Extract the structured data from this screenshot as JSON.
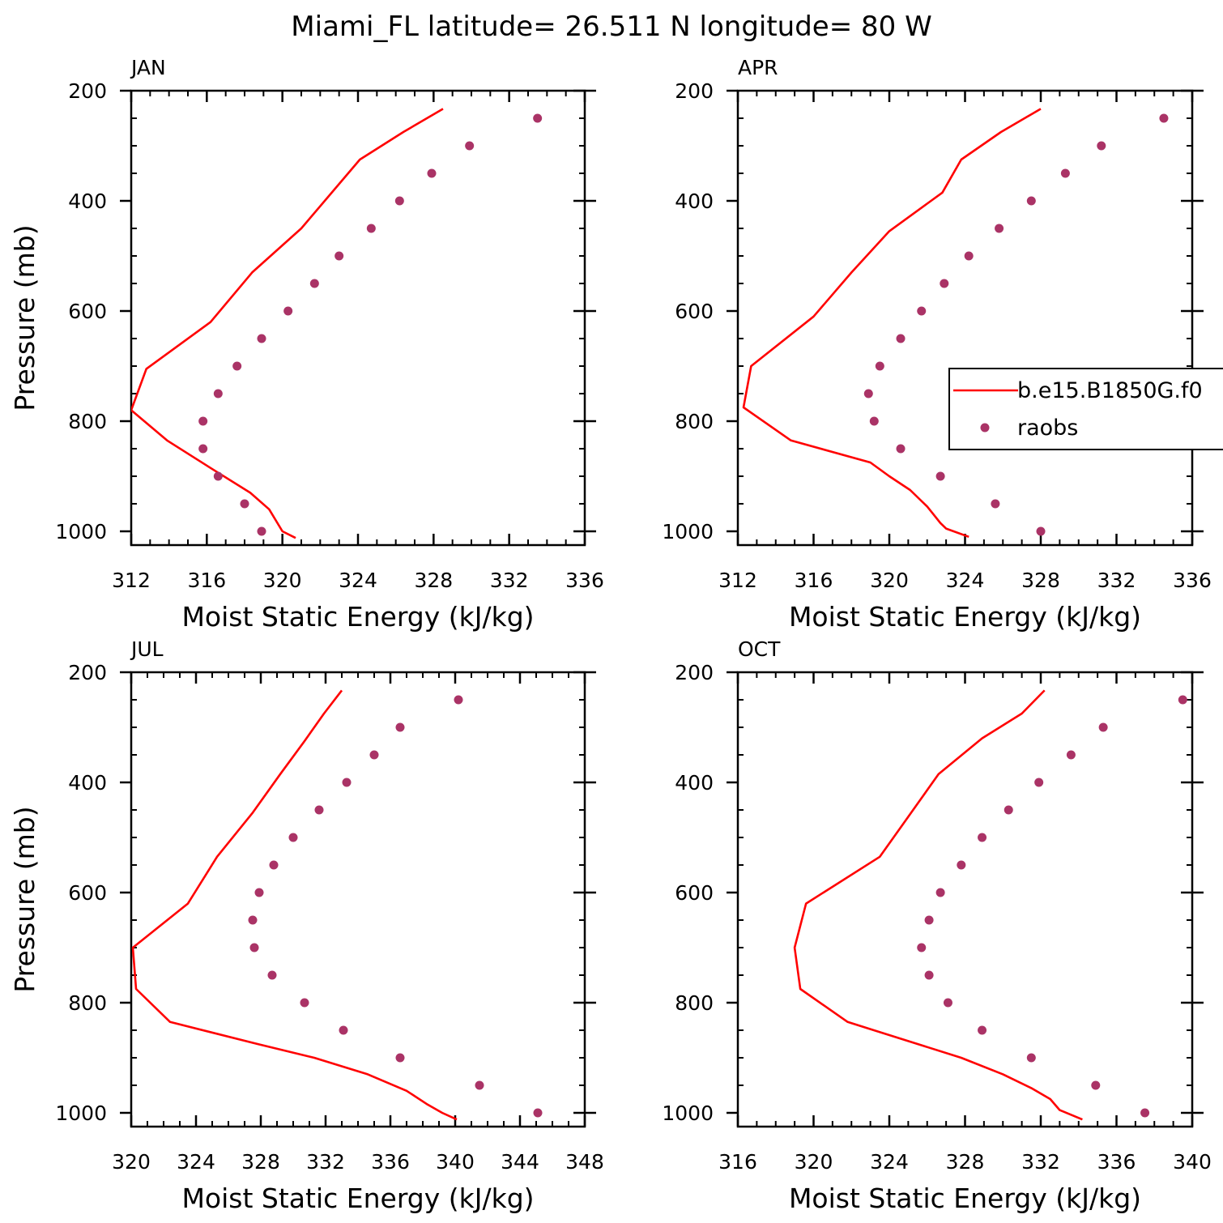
{
  "title": "Miami_FL  latitude= 26.511 N longitude= 80 W",
  "colors": {
    "model": "#ff0000",
    "raobs": "#aa3366",
    "axis": "#000000"
  },
  "legend": {
    "model_label": "b.e15.B1850G.f0",
    "obs_label": "raobs"
  },
  "chart_data": [
    {
      "type": "line",
      "panel": "JAN",
      "xlabel": "Moist Static Energy (kJ/kg)",
      "ylabel": "Pressure (mb)",
      "xlim": [
        312,
        336
      ],
      "xticks": [
        312,
        316,
        320,
        324,
        328,
        332,
        336
      ],
      "ylim": [
        1025,
        200
      ],
      "yticks": [
        200,
        400,
        600,
        800,
        1000
      ],
      "model": {
        "name": "b.e15.B1850G.f0",
        "x": [
          328.5,
          326.4,
          324.1,
          321.0,
          318.4,
          316.2,
          312.8,
          312.0,
          313.9,
          316.2,
          318.3,
          319.3,
          320.0,
          320.7
        ],
        "p": [
          233,
          275,
          325,
          450,
          530,
          620,
          705,
          780,
          835,
          885,
          930,
          960,
          1000,
          1012
        ]
      },
      "raobs": {
        "name": "raobs",
        "x": [
          333.5,
          329.9,
          327.9,
          326.2,
          324.7,
          323.0,
          321.7,
          320.3,
          318.9,
          317.6,
          316.6,
          315.8,
          315.8,
          316.6,
          318.0,
          318.9
        ],
        "p": [
          250,
          300,
          350,
          400,
          450,
          500,
          550,
          600,
          650,
          700,
          750,
          800,
          850,
          900,
          950,
          1000
        ]
      }
    },
    {
      "type": "line",
      "panel": "APR",
      "xlabel": "Moist Static Energy (kJ/kg)",
      "ylabel": "",
      "xlim": [
        312,
        336
      ],
      "xticks": [
        312,
        316,
        320,
        324,
        328,
        332,
        336
      ],
      "ylim": [
        1025,
        200
      ],
      "yticks": [
        200,
        400,
        600,
        800,
        1000
      ],
      "legend": true,
      "model": {
        "name": "b.e15.B1850G.f0",
        "x": [
          328.0,
          325.9,
          323.8,
          322.8,
          320.0,
          318.0,
          316.0,
          312.7,
          312.3,
          314.8,
          319.0,
          320.0,
          321.1,
          322.0,
          322.7,
          323.0,
          324.2
        ],
        "p": [
          233,
          275,
          325,
          385,
          455,
          530,
          610,
          700,
          775,
          835,
          875,
          900,
          925,
          955,
          985,
          995,
          1010
        ]
      },
      "raobs": {
        "name": "raobs",
        "x": [
          334.5,
          331.2,
          329.3,
          327.5,
          325.8,
          324.2,
          322.9,
          321.7,
          320.6,
          319.5,
          318.9,
          319.2,
          320.6,
          322.7,
          325.6,
          328.0
        ],
        "p": [
          250,
          300,
          350,
          400,
          450,
          500,
          550,
          600,
          650,
          700,
          750,
          800,
          850,
          900,
          950,
          1000
        ]
      }
    },
    {
      "type": "line",
      "panel": "JUL",
      "xlabel": "Moist Static Energy (kJ/kg)",
      "ylabel": "Pressure (mb)",
      "xlim": [
        320,
        348
      ],
      "xticks": [
        320,
        324,
        328,
        332,
        336,
        340,
        344,
        348
      ],
      "ylim": [
        1025,
        200
      ],
      "yticks": [
        200,
        400,
        600,
        800,
        1000
      ],
      "model": {
        "name": "b.e15.B1850G.f0",
        "x": [
          333.0,
          331.9,
          330.7,
          329.2,
          327.5,
          325.3,
          323.5,
          320.1,
          320.3,
          322.4,
          327.8,
          331.3,
          334.6,
          337.0,
          338.3,
          339.2,
          340.1
        ],
        "p": [
          233,
          275,
          325,
          385,
          455,
          535,
          620,
          700,
          775,
          835,
          875,
          900,
          930,
          960,
          985,
          1000,
          1012
        ]
      },
      "raobs": {
        "name": "raobs",
        "x": [
          340.2,
          336.6,
          335.0,
          333.3,
          331.6,
          330.0,
          328.8,
          327.9,
          327.5,
          327.6,
          328.7,
          330.7,
          333.1,
          336.6,
          341.5,
          345.1
        ],
        "p": [
          250,
          300,
          350,
          400,
          450,
          500,
          550,
          600,
          650,
          700,
          750,
          800,
          850,
          900,
          950,
          1000
        ]
      }
    },
    {
      "type": "line",
      "panel": "OCT",
      "xlabel": "Moist Static Energy (kJ/kg)",
      "ylabel": "",
      "xlim": [
        316,
        340
      ],
      "xticks": [
        316,
        320,
        324,
        328,
        332,
        336,
        340
      ],
      "ylim": [
        1025,
        200
      ],
      "yticks": [
        200,
        400,
        600,
        800,
        1000
      ],
      "model": {
        "name": "b.e15.B1850G.f0",
        "x": [
          332.2,
          331.0,
          328.9,
          326.6,
          323.5,
          319.6,
          319.0,
          319.3,
          321.8,
          327.8,
          330.0,
          331.5,
          332.5,
          333.0,
          334.2
        ],
        "p": [
          233,
          275,
          320,
          385,
          535,
          620,
          700,
          775,
          835,
          900,
          930,
          955,
          975,
          995,
          1012
        ]
      },
      "raobs": {
        "name": "raobs",
        "x": [
          339.5,
          335.3,
          333.6,
          331.9,
          330.3,
          328.9,
          327.8,
          326.7,
          326.1,
          325.7,
          326.1,
          327.1,
          328.9,
          331.5,
          334.9,
          337.5
        ],
        "p": [
          250,
          300,
          350,
          400,
          450,
          500,
          550,
          600,
          650,
          700,
          750,
          800,
          850,
          900,
          950,
          1000
        ]
      }
    }
  ]
}
